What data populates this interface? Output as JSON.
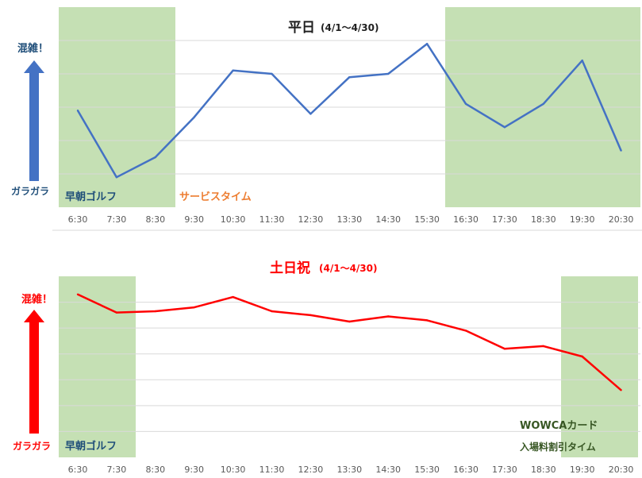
{
  "colors": {
    "band": "#c5e0b4",
    "grid": "#d9d9d9",
    "weekday_line": "#4472c4",
    "weekend_line": "#ff0000",
    "blue_text": "#1f4e79",
    "red_text": "#ff0000",
    "orange_text": "#ed7d31",
    "green_text": "#375623"
  },
  "indicators": {
    "weekday": {
      "top": "混雑！",
      "bottom": "ガラガラ"
    },
    "weekend": {
      "top": "混雑！",
      "bottom": "ガラガラ"
    }
  },
  "chart_data": [
    {
      "type": "line",
      "title": "平日",
      "subtitle": "(4/1～4/30)",
      "categories": [
        "6:30",
        "7:30",
        "8:30",
        "9:30",
        "10:30",
        "11:30",
        "12:30",
        "13:30",
        "14:30",
        "15:30",
        "16:30",
        "17:30",
        "18:30",
        "19:30",
        "20:30"
      ],
      "series": [
        {
          "values": [
            2.9,
            0.9,
            1.5,
            2.7,
            4.1,
            4.0,
            2.8,
            3.9,
            4.0,
            4.9,
            3.1,
            2.4,
            3.1,
            4.4,
            1.7
          ]
        }
      ],
      "ylim": [
        0,
        6
      ],
      "grid": true,
      "bands": [
        {
          "from": "6:30",
          "to": "8:30",
          "label": "早朝ゴルフ"
        },
        {
          "from": "16:30",
          "to": "20:30",
          "label": ""
        }
      ],
      "annotations": [
        "サービスタイム"
      ]
    },
    {
      "type": "line",
      "title": "土日祝",
      "subtitle": "(4/1～4/30)",
      "categories": [
        "6:30",
        "7:30",
        "8:30",
        "9:30",
        "10:30",
        "11:30",
        "12:30",
        "13:30",
        "14:30",
        "15:30",
        "16:30",
        "17:30",
        "18:30",
        "19:30",
        "20:30"
      ],
      "series": [
        {
          "values": [
            6.3,
            5.6,
            5.65,
            5.8,
            6.2,
            5.65,
            5.5,
            5.25,
            5.45,
            5.3,
            4.9,
            4.2,
            4.3,
            3.9,
            2.6
          ]
        }
      ],
      "ylim": [
        0,
        7
      ],
      "grid": true,
      "bands": [
        {
          "from": "6:30",
          "to": "7:30",
          "label": "早朝ゴルフ"
        },
        {
          "from": "19:30",
          "to": "20:30",
          "label": "WOWCAカード 入場料割引タイム"
        }
      ],
      "annotations": [
        "WOWCAカード",
        "入場料割引タイム"
      ]
    }
  ]
}
